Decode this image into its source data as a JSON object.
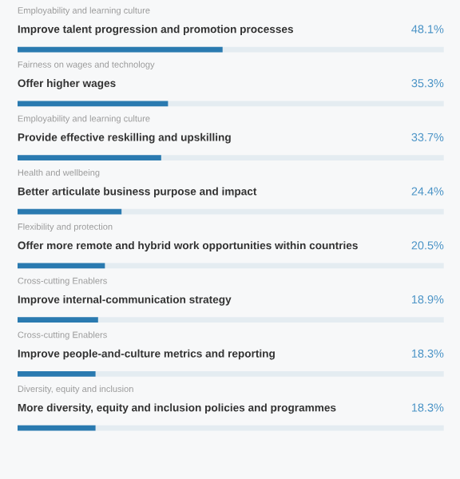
{
  "chart_data": {
    "type": "bar",
    "orientation": "horizontal",
    "categories": [
      "Improve talent progression and promotion processes",
      "Offer higher wages",
      "Provide effective reskilling and upskilling",
      "Better articulate business purpose and impact",
      "Offer more remote and hybrid work opportunities within countries",
      "Improve internal-communication strategy",
      "Improve people-and-culture metrics and reporting",
      "More diversity, equity and inclusion policies and programmes"
    ],
    "values": [
      48.1,
      35.3,
      33.7,
      24.4,
      20.5,
      18.9,
      18.3,
      18.3
    ],
    "value_labels": [
      "48.1%",
      "35.3%",
      "33.7%",
      "24.4%",
      "20.5%",
      "18.9%",
      "18.3%",
      "18.3%"
    ],
    "color": "#2a7ab0",
    "xlim": [
      0,
      100
    ],
    "annotations": [
      "Employability and learning culture",
      "Fairness on wages and technology",
      "Employability and learning culture",
      "Health and wellbeing",
      "Flexibility and protection",
      "Cross-cutting Enablers",
      "Cross-cutting Enablers",
      "Diversity, equity and inclusion"
    ]
  }
}
